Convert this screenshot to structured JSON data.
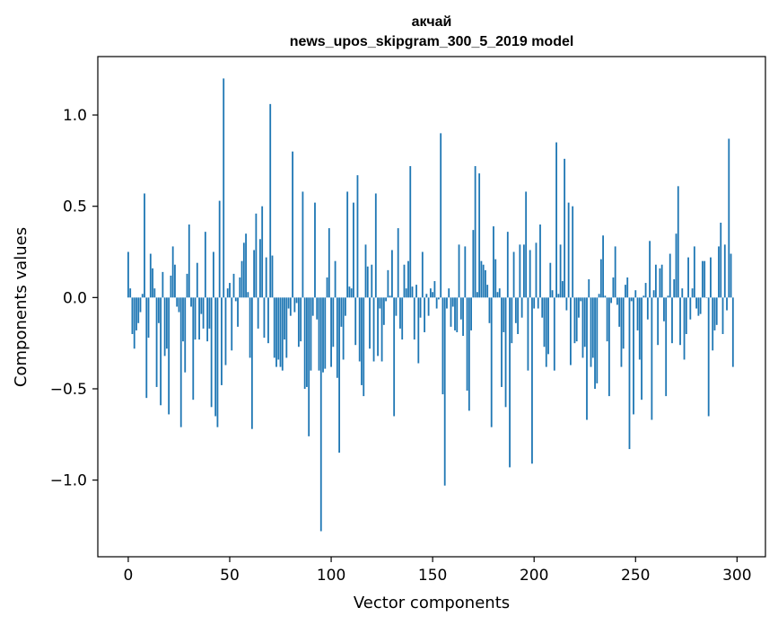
{
  "chart_data": {
    "type": "bar",
    "title_lines": [
      "акчай",
      "news_upos_skipgram_300_5_2019 model"
    ],
    "xlabel": "Vector components",
    "ylabel": "Components values",
    "xlim": [
      -15,
      314
    ],
    "ylim": [
      -1.42,
      1.32
    ],
    "xticks": [
      0,
      50,
      100,
      150,
      200,
      250,
      300
    ],
    "xtick_labels": [
      "0",
      "50",
      "100",
      "150",
      "200",
      "250",
      "300"
    ],
    "yticks": [
      -1.0,
      -0.5,
      0.0,
      0.5,
      1.0
    ],
    "ytick_labels": [
      "−1.0",
      "−0.5",
      "0.0",
      "0.5",
      "1.0"
    ],
    "bar_color": "#1f77b4",
    "values": [
      0.25,
      0.05,
      -0.2,
      -0.28,
      -0.18,
      -0.14,
      -0.08,
      0.02,
      0.57,
      -0.55,
      -0.22,
      0.24,
      0.16,
      0.05,
      -0.49,
      -0.14,
      -0.59,
      0.14,
      -0.32,
      -0.28,
      -0.64,
      0.12,
      0.28,
      0.18,
      -0.05,
      -0.08,
      -0.71,
      -0.24,
      -0.41,
      0.13,
      0.4,
      -0.05,
      -0.56,
      -0.23,
      0.19,
      -0.23,
      -0.09,
      -0.17,
      0.36,
      -0.24,
      -0.17,
      -0.6,
      0.25,
      -0.65,
      -0.71,
      0.53,
      -0.48,
      1.2,
      -0.37,
      0.05,
      0.08,
      -0.29,
      0.13,
      -0.02,
      -0.16,
      0.11,
      0.2,
      0.3,
      0.35,
      0.03,
      -0.33,
      -0.72,
      0.26,
      0.46,
      -0.17,
      0.32,
      0.5,
      -0.22,
      0.22,
      -0.25,
      1.06,
      0.23,
      -0.33,
      -0.38,
      -0.34,
      -0.38,
      -0.4,
      -0.23,
      -0.33,
      -0.06,
      -0.1,
      0.8,
      -0.08,
      -0.03,
      -0.27,
      -0.24,
      0.58,
      -0.5,
      -0.49,
      -0.76,
      -0.4,
      -0.1,
      0.52,
      -0.12,
      -0.4,
      -1.28,
      -0.41,
      -0.39,
      0.11,
      0.38,
      -0.38,
      -0.27,
      0.2,
      -0.44,
      -0.85,
      -0.16,
      -0.34,
      -0.1,
      0.58,
      0.06,
      0.05,
      0.52,
      -0.26,
      0.67,
      -0.35,
      -0.48,
      -0.54,
      0.29,
      0.17,
      -0.28,
      0.18,
      -0.35,
      0.57,
      -0.32,
      -0.06,
      -0.35,
      -0.15,
      -0.02,
      0.15,
      0.01,
      0.26,
      -0.65,
      -0.1,
      0.38,
      -0.17,
      -0.23,
      0.18,
      0.05,
      0.2,
      0.72,
      0.06,
      -0.23,
      0.07,
      -0.36,
      -0.11,
      0.25,
      -0.19,
      0.02,
      -0.1,
      0.05,
      0.03,
      0.09,
      -0.06,
      -0.01,
      0.9,
      -0.53,
      -1.03,
      -0.06,
      0.05,
      -0.16,
      -0.05,
      -0.18,
      -0.19,
      0.29,
      -0.12,
      -0.21,
      0.28,
      -0.51,
      -0.62,
      -0.18,
      0.37,
      0.72,
      0.03,
      0.68,
      0.2,
      0.18,
      0.15,
      0.07,
      -0.14,
      -0.71,
      0.39,
      0.21,
      0.03,
      0.05,
      -0.49,
      -0.19,
      -0.6,
      0.36,
      -0.93,
      -0.25,
      0.25,
      -0.14,
      -0.2,
      0.29,
      -0.11,
      0.29,
      0.58,
      -0.4,
      0.26,
      -0.91,
      -0.06,
      0.3,
      -0.06,
      0.4,
      -0.11,
      -0.27,
      -0.38,
      -0.31,
      0.19,
      0.04,
      -0.4,
      0.85,
      0.02,
      0.29,
      0.09,
      0.76,
      -0.07,
      0.52,
      -0.37,
      0.5,
      -0.25,
      -0.24,
      -0.11,
      -0.02,
      -0.33,
      -0.27,
      -0.67,
      0.1,
      -0.38,
      -0.33,
      -0.5,
      -0.47,
      0.02,
      0.21,
      0.34,
      0.01,
      -0.24,
      -0.54,
      -0.03,
      0.11,
      0.28,
      -0.04,
      -0.16,
      -0.38,
      -0.28,
      0.07,
      0.11,
      -0.83,
      -0.02,
      -0.64,
      0.04,
      -0.18,
      -0.34,
      -0.56,
      0.01,
      0.08,
      -0.12,
      0.31,
      -0.67,
      0.04,
      0.18,
      -0.26,
      0.16,
      0.18,
      -0.13,
      -0.54,
      0.01,
      0.24,
      -0.25,
      0.1,
      0.35,
      0.61,
      -0.26,
      0.05,
      -0.34,
      -0.2,
      0.22,
      -0.12,
      0.05,
      0.28,
      -0.06,
      -0.1,
      -0.09,
      0.2,
      0.2,
      0.0,
      -0.65,
      0.22,
      -0.29,
      -0.18,
      -0.15,
      0.28,
      0.41,
      -0.2,
      0.29,
      -0.07,
      0.87,
      0.24,
      -0.38
    ]
  }
}
